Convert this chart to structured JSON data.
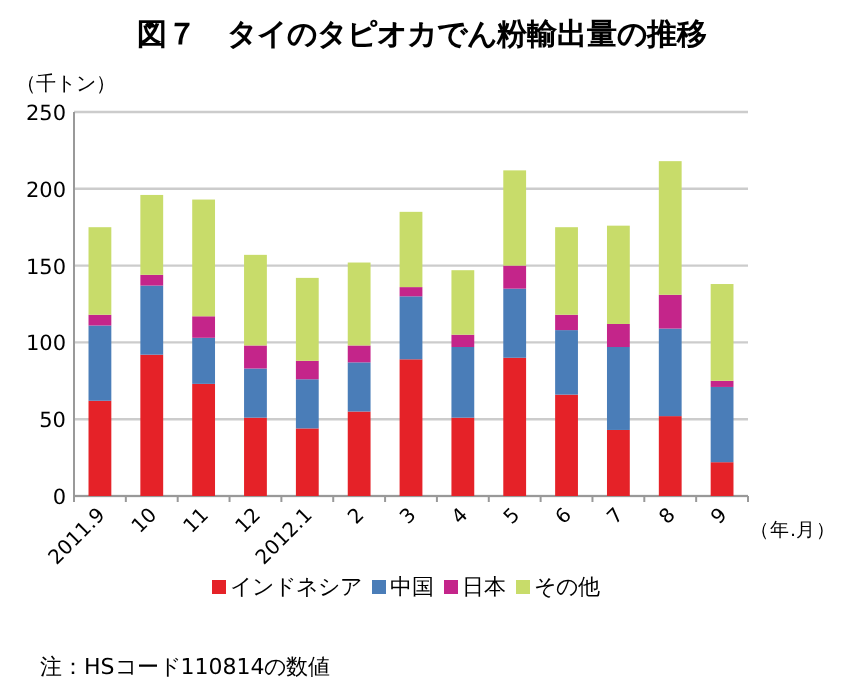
{
  "chart_data": {
    "type": "bar",
    "stacked": true,
    "title": "図７　タイのタピオカでん粉輸出量の推移",
    "ylabel": "（千トン）",
    "xlabel": "（年.月）",
    "categories": [
      "2011.9",
      "10",
      "11",
      "12",
      "2012.1",
      "2",
      "3",
      "4",
      "5",
      "6",
      "7",
      "8",
      "9"
    ],
    "series": [
      {
        "name": "インドネシア",
        "color": "#e52228",
        "values": [
          62,
          92,
          73,
          51,
          44,
          55,
          89,
          51,
          90,
          66,
          43,
          52,
          22
        ]
      },
      {
        "name": "中国",
        "color": "#4a7db8",
        "values": [
          49,
          45,
          30,
          32,
          32,
          32,
          41,
          46,
          45,
          42,
          54,
          57,
          49
        ]
      },
      {
        "name": "日本",
        "color": "#c4258a",
        "values": [
          7,
          7,
          14,
          15,
          12,
          11,
          6,
          8,
          15,
          10,
          15,
          22,
          4
        ]
      },
      {
        "name": "その他",
        "color": "#c8dc6a",
        "values": [
          57,
          52,
          76,
          59,
          54,
          54,
          49,
          42,
          62,
          57,
          64,
          87,
          63
        ]
      }
    ],
    "ylim": [
      0,
      250
    ],
    "yticks": [
      0,
      50,
      100,
      150,
      200,
      250
    ],
    "grid": "y",
    "legend": "bottom",
    "annotations": [
      "注：HSコード110814の数値"
    ]
  }
}
